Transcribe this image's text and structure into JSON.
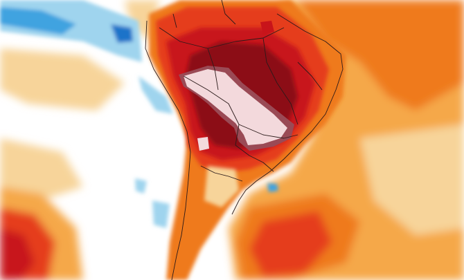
{
  "map": {
    "palette": {
      "background": "#ffffff",
      "anomaly_weak_cold": "#9fd4ee",
      "anomaly_cold": "#3fa3e0",
      "anomaly_strong_cold": "#1a73c9",
      "anomaly_weak_warm": "#f7d49a",
      "anomaly_warm": "#f5a84a",
      "anomaly_hot": "#ef7a1f",
      "anomaly_very_hot": "#e53d1b",
      "anomaly_extreme": "#c8141a",
      "anomaly_peak": "#8c1015",
      "anomaly_core_dark": "#9a4a55",
      "anomaly_core_light": "#f3d9dc",
      "borders": "#2b1a1a"
    }
  }
}
